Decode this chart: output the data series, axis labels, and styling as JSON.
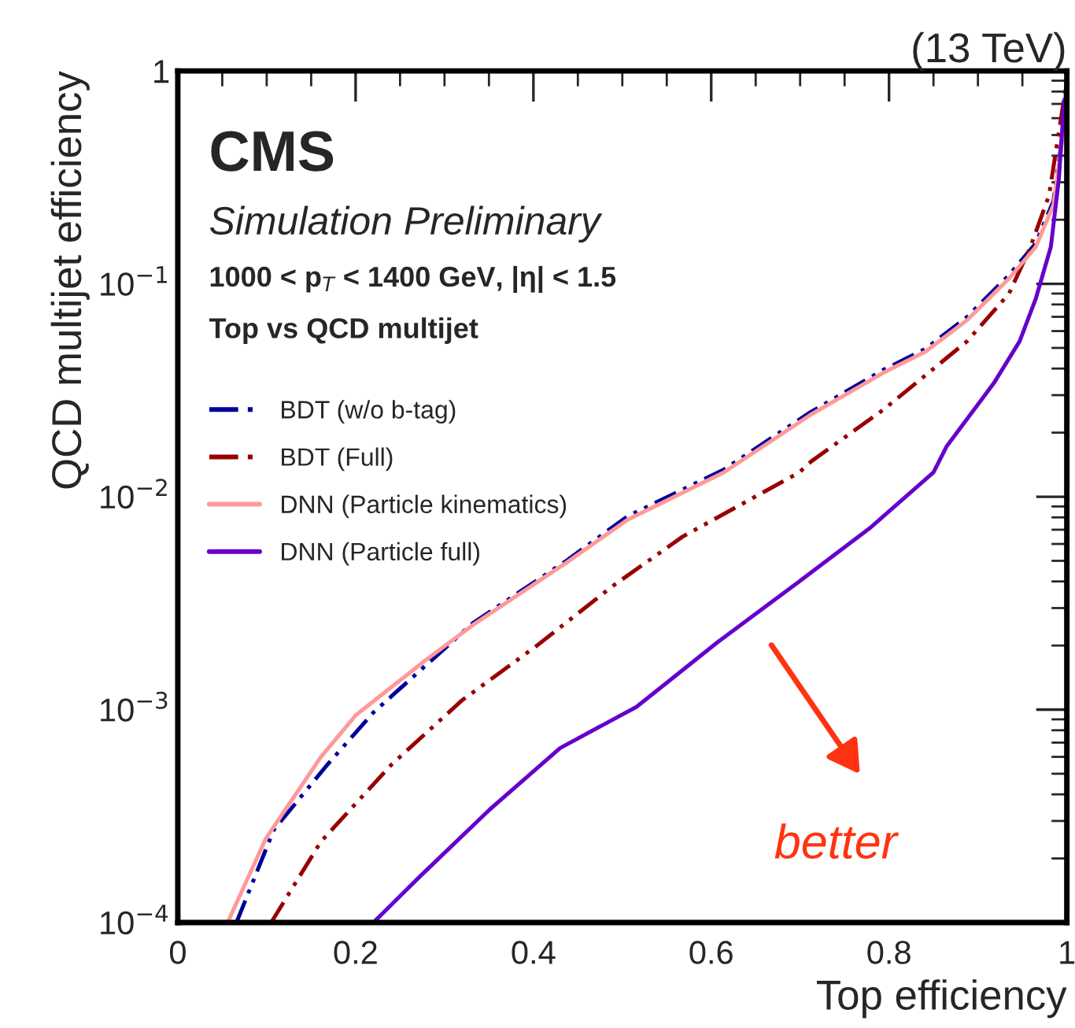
{
  "chart_data": {
    "type": "line",
    "title": "(13 TeV)",
    "xlabel": "Top efficiency",
    "ylabel": "QCD multijet efficiency",
    "annotations": [
      "CMS",
      "Simulation Preliminary",
      "1000 < p$_{T}$ < 1400 GeV, |η| < 1.5",
      "Top vs QCD multijet",
      "better"
    ],
    "series": [
      {
        "name": "BDT (w/o b-tag)",
        "color": "#000099",
        "line_style": "dashed",
        "x": [
          0.066,
          0.108,
          0.168,
          0.22,
          0.332,
          0.437,
          0.506,
          0.614,
          0.712,
          0.794,
          0.841,
          0.888,
          0.935,
          0.965,
          0.985,
          0.997,
          1.0
        ],
        "values": [
          0.0001,
          0.000273,
          0.00055,
          0.00097,
          0.00255,
          0.005,
          0.0081,
          0.0134,
          0.025,
          0.0395,
          0.0495,
          0.07,
          0.11,
          0.155,
          0.245,
          0.57,
          0.95
        ]
      },
      {
        "name": "BDT (Full)",
        "color": "#990000",
        "line_style": "dashed",
        "x": [
          0.105,
          0.161,
          0.24,
          0.319,
          0.404,
          0.489,
          0.568,
          0.699,
          0.712,
          0.794,
          0.888,
          0.935,
          0.959,
          0.98,
          1.0
        ],
        "values": [
          0.0001,
          0.00024,
          0.00055,
          0.0011,
          0.002,
          0.0038,
          0.0065,
          0.013,
          0.0146,
          0.0257,
          0.0538,
          0.09,
          0.149,
          0.26,
          0.9
        ]
      },
      {
        "name": "DNN (Particle kinematics)",
        "color": "#ff9999",
        "line_style": "solid",
        "x": [
          0.056,
          0.099,
          0.161,
          0.2,
          0.279,
          0.332,
          0.437,
          0.506,
          0.614,
          0.712,
          0.794,
          0.841,
          0.888,
          0.935,
          0.965,
          0.985,
          0.997
        ],
        "values": [
          0.0001,
          0.000248,
          0.0006,
          0.00094,
          0.00171,
          0.0025,
          0.0049,
          0.0078,
          0.013,
          0.0243,
          0.0383,
          0.048,
          0.0676,
          0.106,
          0.149,
          0.235,
          0.55
        ]
      },
      {
        "name": "DNN (Particle full)",
        "color": "#6600cc",
        "line_style": "solid",
        "x": [
          0.22,
          0.272,
          0.351,
          0.43,
          0.516,
          0.607,
          0.699,
          0.778,
          0.85,
          0.865,
          0.918,
          0.947,
          0.965,
          0.982,
          0.991,
          0.997
        ],
        "values": [
          0.0001,
          0.000164,
          0.00034,
          0.00066,
          0.00103,
          0.00207,
          0.004,
          0.0071,
          0.013,
          0.0173,
          0.0342,
          0.0538,
          0.085,
          0.149,
          0.31,
          0.73
        ]
      }
    ],
    "log": "y",
    "xlim": [
      0,
      1
    ],
    "ylim": [
      0.0001,
      1
    ],
    "xticks": [
      0,
      0.2,
      0.4,
      0.6,
      0.8,
      1
    ],
    "yticks": [
      {
        "value": 0.0001,
        "label": "10$^{−4}$"
      },
      {
        "value": 0.001,
        "label": "10$^{−3}$"
      },
      {
        "value": 0.01,
        "label": "10$^{−2}$"
      },
      {
        "value": 0.1,
        "label": "10$^{−1}$"
      },
      1
    ],
    "legend": "top left",
    "grid": false
  }
}
